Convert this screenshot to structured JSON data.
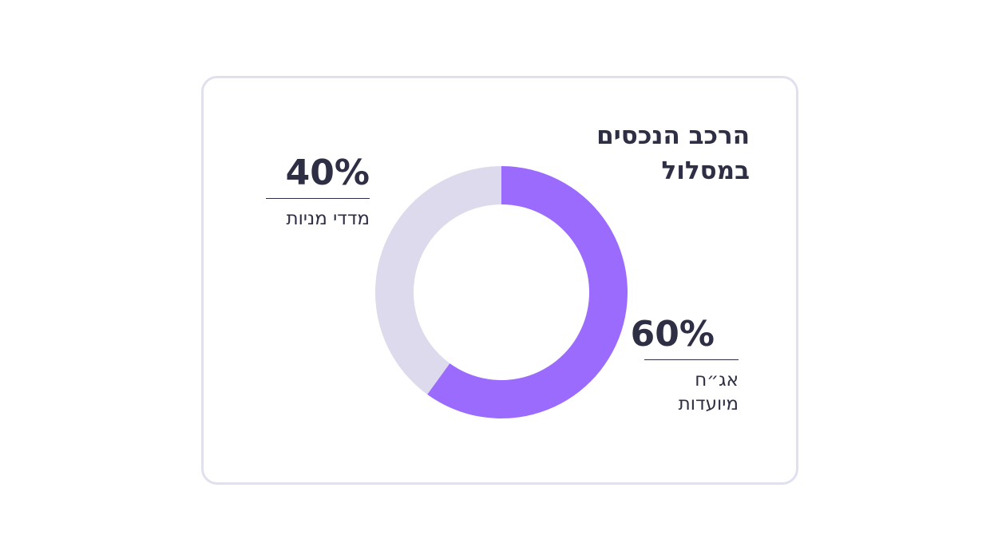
{
  "card": {
    "title_lines": [
      "הרכב הנכסים",
      "במסלול"
    ]
  },
  "chart_data": {
    "type": "pie",
    "variant": "donut",
    "title": "הרכב הנכסים במסלול",
    "slices": [
      {
        "label": "אג״ח מיועדות",
        "label_lines": [
          "אג״ח",
          "מיועדות"
        ],
        "value": 60,
        "display": "60%",
        "color": "#9a6bfd"
      },
      {
        "label": "מדדי מניות",
        "label_lines": [
          "מדדי מניות"
        ],
        "value": 40,
        "display": "40%",
        "color": "#dcdaec"
      }
    ],
    "start_angle_deg": 0,
    "direction": "clockwise",
    "legend": "callouts beside slices"
  },
  "colors": {
    "text": "#2e2f45",
    "card_border": "#e1e0ee",
    "bonds": "#9a6bfd",
    "equities": "#dcdaec"
  }
}
